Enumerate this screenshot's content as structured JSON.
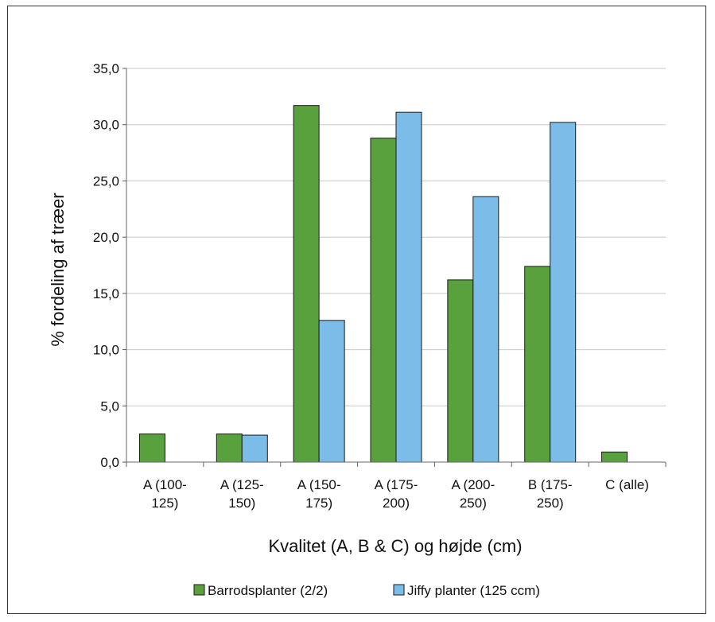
{
  "chart_data": {
    "type": "bar",
    "title": "",
    "xlabel": "Kvalitet (A, B & C) og højde (cm)",
    "ylabel": "% fordeling af træer",
    "ylim": [
      0,
      35
    ],
    "yticks": [
      "0,0",
      "5,0",
      "10,0",
      "15,0",
      "20,0",
      "25,0",
      "30,0",
      "35,0"
    ],
    "ytick_values": [
      0,
      5,
      10,
      15,
      20,
      25,
      30,
      35
    ],
    "grid": true,
    "legend_position": "bottom",
    "categories": [
      [
        "A (100-",
        "125)"
      ],
      [
        "A (125-",
        "150)"
      ],
      [
        "A (150-",
        "175)"
      ],
      [
        "A (175-",
        "200)"
      ],
      [
        "A (200-",
        "250)"
      ],
      [
        "B (175-",
        "250)"
      ],
      [
        "C (alle)"
      ]
    ],
    "series": [
      {
        "name": "Barrodsplanter (2/2)",
        "color": "#58a13d",
        "values": [
          2.5,
          2.5,
          31.7,
          28.8,
          16.2,
          17.4,
          0.9
        ]
      },
      {
        "name": "Jiffy planter (125 ccm)",
        "color": "#7bbde8",
        "values": [
          0,
          2.4,
          12.6,
          31.1,
          23.6,
          30.2,
          0
        ]
      }
    ]
  }
}
